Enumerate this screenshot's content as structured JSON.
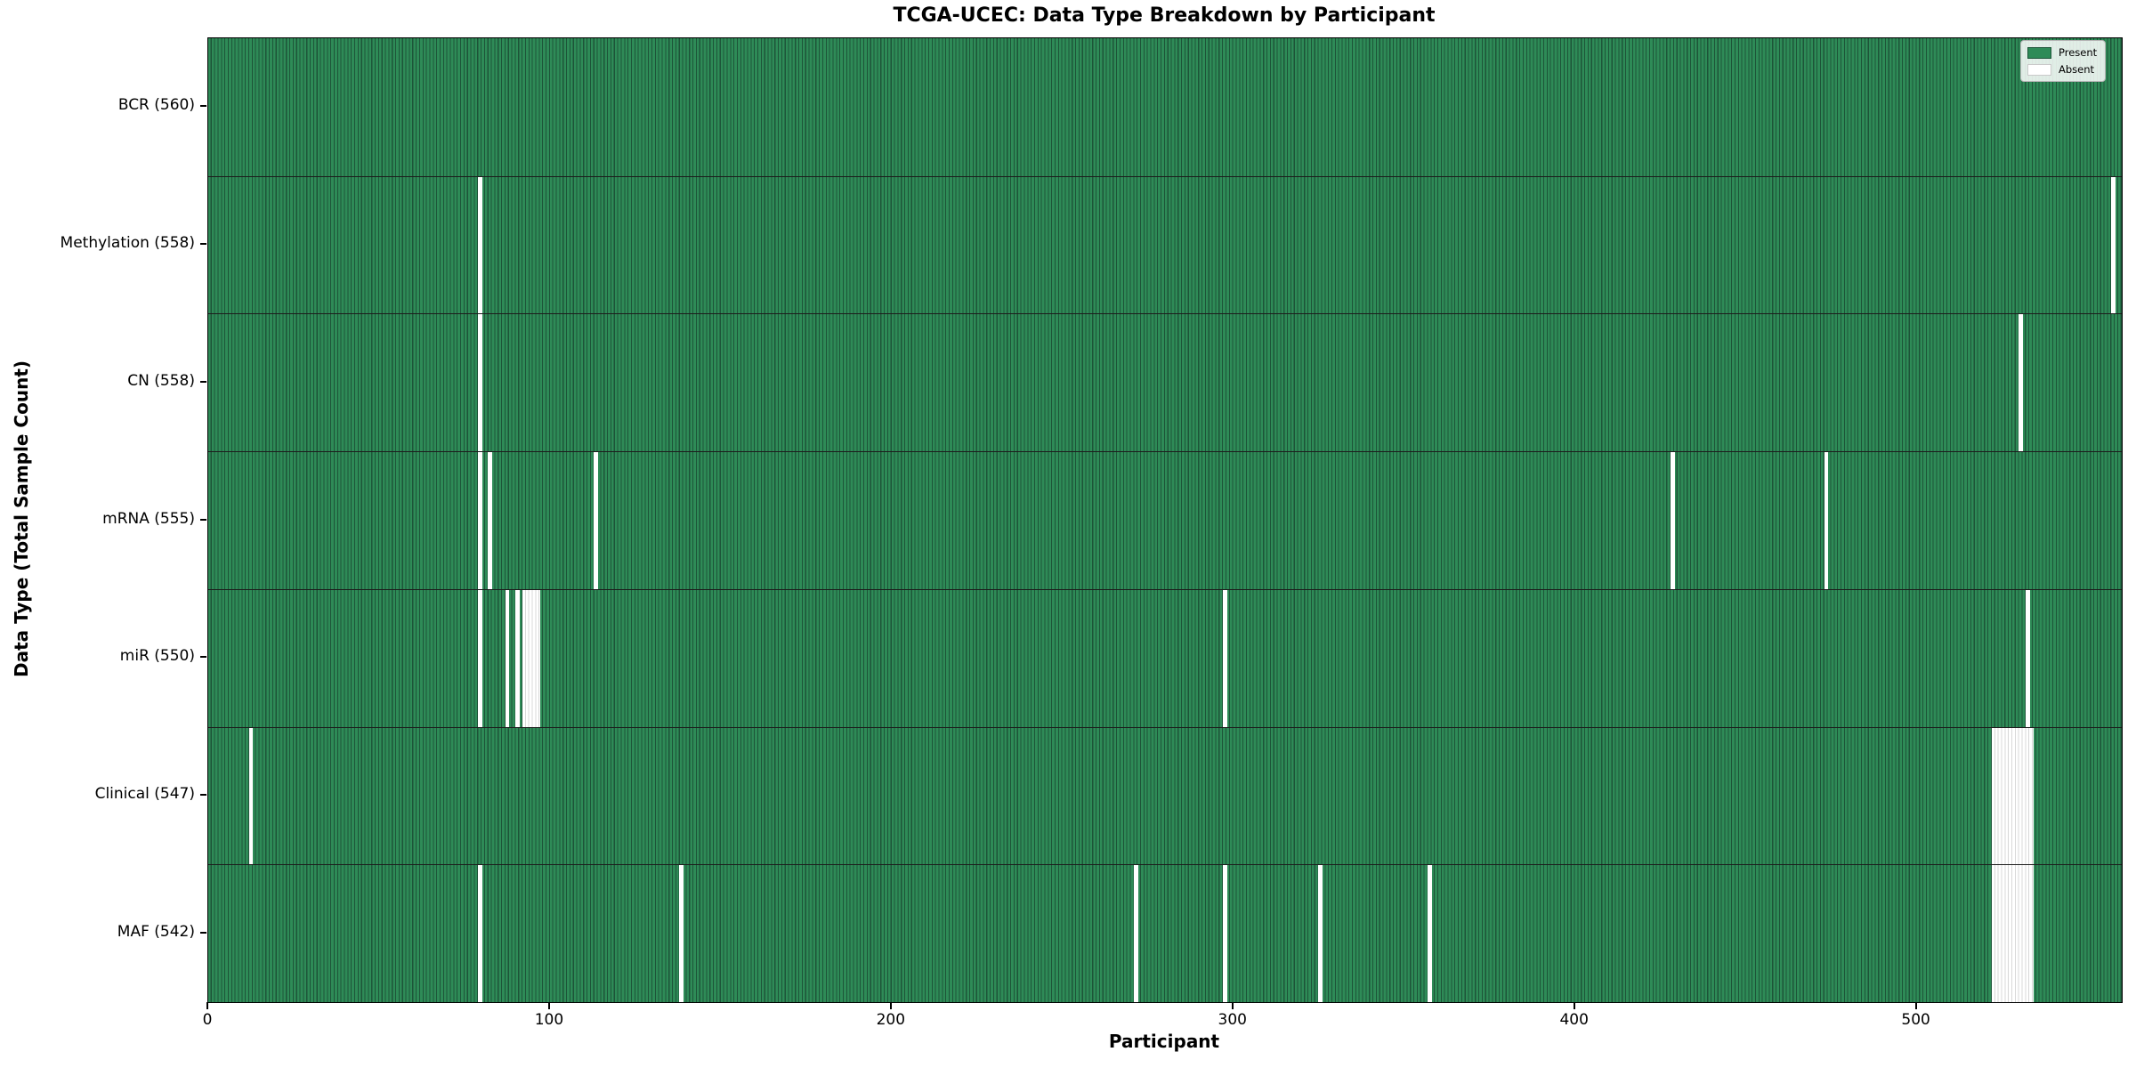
{
  "title": "TCGA-UCEC: Data Type Breakdown by Participant",
  "axes": {
    "xlabel": "Participant",
    "ylabel": "Data Type (Total Sample Count)"
  },
  "legend": {
    "present_label": "Present",
    "absent_label": "Absent"
  },
  "colors": {
    "present": "#2e8b57",
    "present_edge": "#1d5438",
    "absent": "#ffffff",
    "absent_edge": "#d8d8d8",
    "row_divider": "#1c1c1c",
    "frame": "#000000"
  },
  "chart_data": {
    "type": "heatmap",
    "title": "TCGA-UCEC: Data Type Breakdown by Participant",
    "xlabel": "Participant",
    "ylabel": "Data Type (Total Sample Count)",
    "legend_entries": [
      "Present",
      "Absent"
    ],
    "legend_position": "upper right",
    "grid": false,
    "n_participants": 560,
    "x_ticks": [
      0,
      100,
      200,
      300,
      400,
      500
    ],
    "x_range": [
      0,
      560
    ],
    "rows": [
      {
        "label": "BCR (560)",
        "name": "BCR",
        "total": 560,
        "absent_participants": []
      },
      {
        "label": "Methylation (558)",
        "name": "Methylation",
        "total": 558,
        "absent_participants": [
          79,
          557
        ]
      },
      {
        "label": "CN (558)",
        "name": "CN",
        "total": 558,
        "absent_participants": [
          79,
          530
        ]
      },
      {
        "label": "mRNA (555)",
        "name": "mRNA",
        "total": 555,
        "absent_participants": [
          79,
          82,
          113,
          428,
          473
        ]
      },
      {
        "label": "miR (550)",
        "name": "miR",
        "total": 550,
        "absent_participants": [
          79,
          87,
          90,
          92,
          93,
          94,
          95,
          96,
          297,
          532
        ]
      },
      {
        "label": "Clinical (547)",
        "name": "Clinical",
        "total": 547,
        "absent_participants": [
          12,
          522,
          523,
          524,
          525,
          526,
          527,
          528,
          529,
          530,
          531,
          532,
          533
        ]
      },
      {
        "label": "MAF (542)",
        "name": "MAF",
        "total": 542,
        "absent_participants": [
          79,
          138,
          271,
          297,
          325,
          357,
          522,
          523,
          524,
          525,
          526,
          527,
          528,
          529,
          530,
          531,
          532,
          533
        ]
      }
    ]
  }
}
